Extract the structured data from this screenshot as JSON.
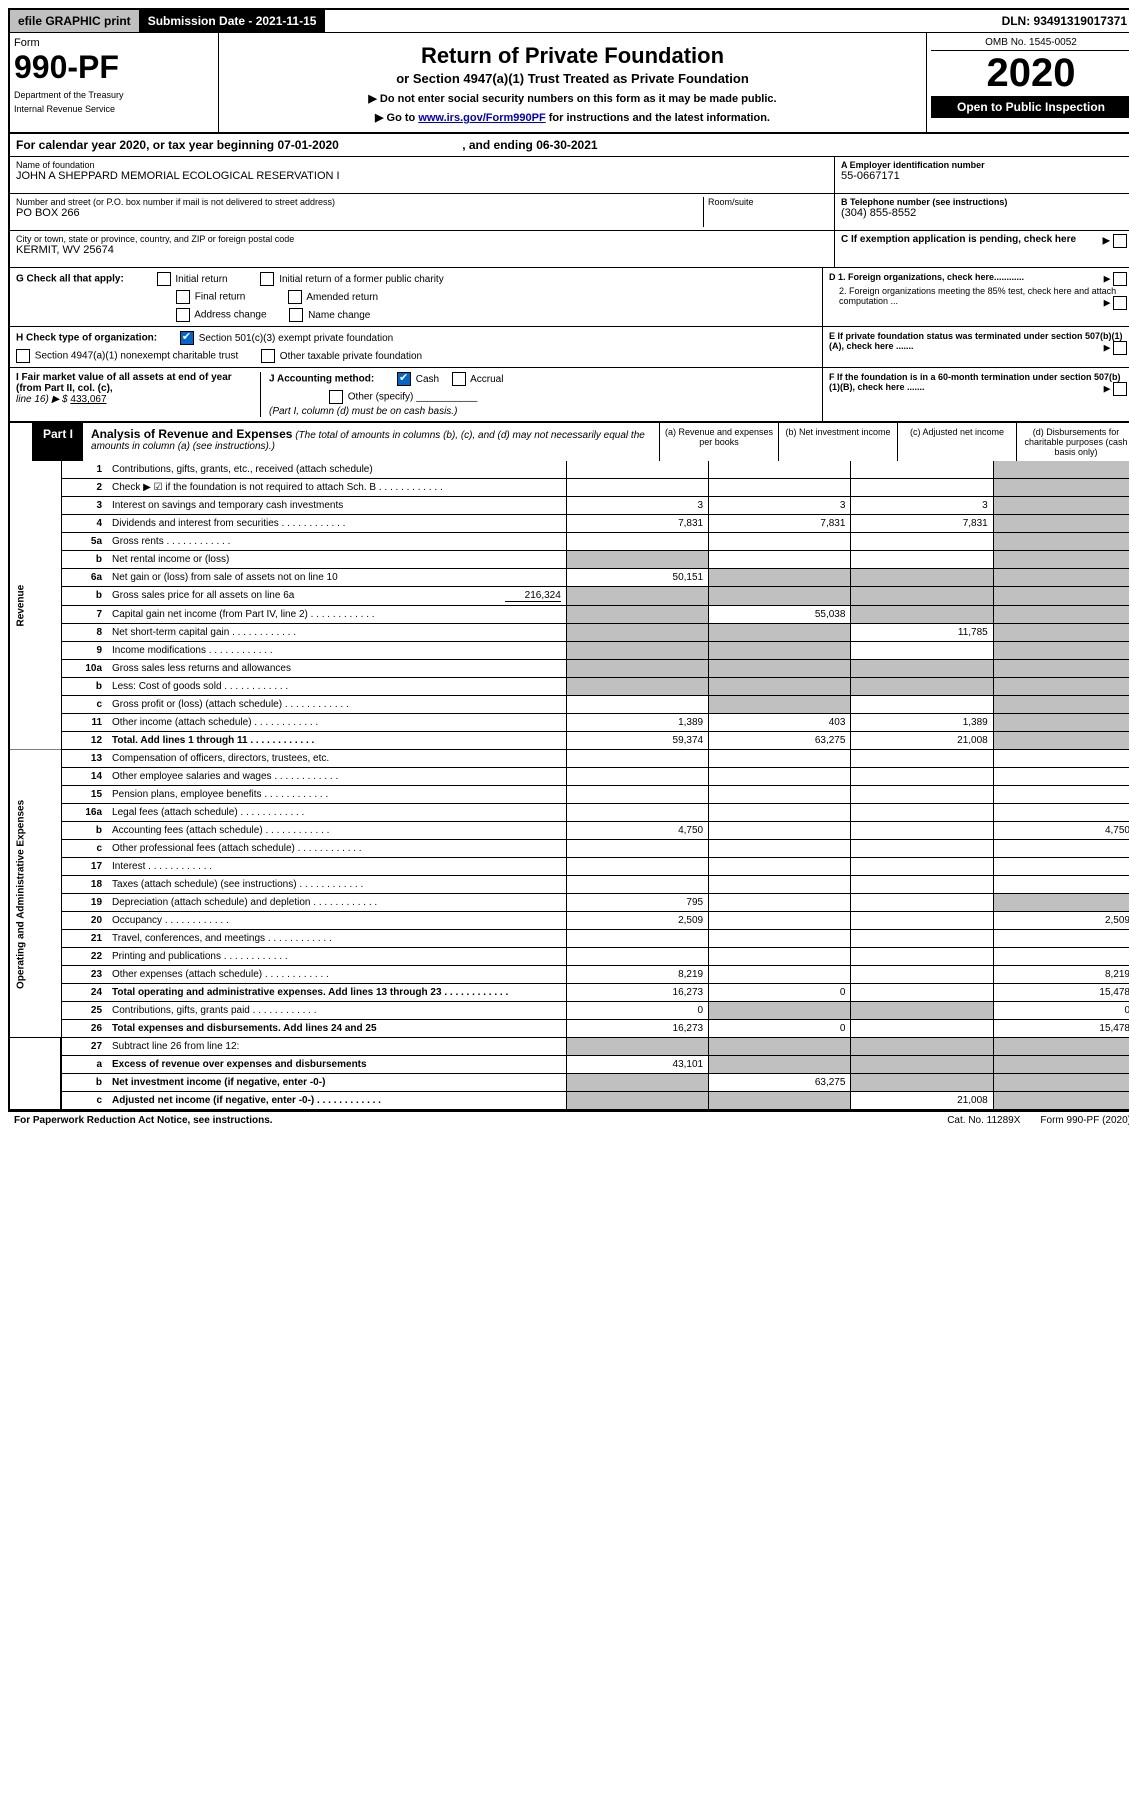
{
  "top_bar": {
    "efile": "efile GRAPHIC print",
    "submission": "Submission Date - 2021-11-15",
    "dln": "DLN: 93491319017371"
  },
  "header": {
    "form": "Form",
    "number": "990-PF",
    "dept": "Department of the Treasury",
    "irs": "Internal Revenue Service",
    "title": "Return of Private Foundation",
    "subtitle": "or Section 4947(a)(1) Trust Treated as Private Foundation",
    "note1": "▶ Do not enter social security numbers on this form as it may be made public.",
    "note2_pre": "▶ Go to ",
    "note2_link": "www.irs.gov/Form990PF",
    "note2_post": " for instructions and the latest information.",
    "omb": "OMB No. 1545-0052",
    "year": "2020",
    "open": "Open to Public Inspection"
  },
  "cal_year": {
    "pre": "For calendar year 2020, or tax year beginning ",
    "begin": "07-01-2020",
    "mid": " , and ending ",
    "end": "06-30-2021"
  },
  "info": {
    "name_label": "Name of foundation",
    "name": "JOHN A SHEPPARD MEMORIAL ECOLOGICAL RESERVATION I",
    "addr_label": "Number and street (or P.O. box number if mail is not delivered to street address)",
    "addr": "PO BOX 266",
    "room_label": "Room/suite",
    "city_label": "City or town, state or province, country, and ZIP or foreign postal code",
    "city": "KERMIT, WV  25674",
    "a_label": "A Employer identification number",
    "a_value": "55-0667171",
    "b_label": "B Telephone number (see instructions)",
    "b_value": "(304) 855-8552",
    "c_label": "C If exemption application is pending, check here"
  },
  "g": {
    "label": "G Check all that apply:",
    "initial": "Initial return",
    "initial_former": "Initial return of a former public charity",
    "final": "Final return",
    "amended": "Amended return",
    "addr_change": "Address change",
    "name_change": "Name change"
  },
  "h": {
    "label": "H Check type of organization:",
    "501c3": "Section 501(c)(3) exempt private foundation",
    "4947": "Section 4947(a)(1) nonexempt charitable trust",
    "other": "Other taxable private foundation"
  },
  "d": {
    "d1": "D 1. Foreign organizations, check here............",
    "d2": "2. Foreign organizations meeting the 85% test, check here and attach computation ..."
  },
  "e": "E  If private foundation status was terminated under section 507(b)(1)(A), check here .......",
  "i": {
    "label": "I Fair market value of all assets at end of year (from Part II, col. (c),",
    "line": "line 16) ▶ $",
    "value": "433,067"
  },
  "j": {
    "label": "J Accounting method:",
    "cash": "Cash",
    "accrual": "Accrual",
    "other": "Other (specify)",
    "note": "(Part I, column (d) must be on cash basis.)"
  },
  "f": "F  If the foundation is in a 60-month termination under section 507(b)(1)(B), check here .......",
  "part1": {
    "label": "Part I",
    "title": "Analysis of Revenue and Expenses",
    "note": " (The total of amounts in columns (b), (c), and (d) may not necessarily equal the amounts in column (a) (see instructions).)",
    "col_a": "(a)   Revenue and expenses per books",
    "col_b": "(b)   Net investment income",
    "col_c": "(c)   Adjusted net income",
    "col_d": "(d)   Disbursements for charitable purposes (cash basis only)"
  },
  "sections": {
    "revenue": "Revenue",
    "opex": "Operating and Administrative Expenses"
  },
  "rows": [
    {
      "n": "1",
      "desc": "Contributions, gifts, grants, etc., received (attach schedule)",
      "a": "",
      "b": "",
      "c": "",
      "d": "",
      "sec": "rev",
      "grey_b": false
    },
    {
      "n": "2",
      "desc": "Check ▶ ☑ if the foundation is not required to attach Sch. B",
      "a": "",
      "b": "",
      "c": "",
      "d": "",
      "sec": "rev",
      "dots": true
    },
    {
      "n": "3",
      "desc": "Interest on savings and temporary cash investments",
      "a": "3",
      "b": "3",
      "c": "3",
      "d": "",
      "sec": "rev"
    },
    {
      "n": "4",
      "desc": "Dividends and interest from securities",
      "a": "7,831",
      "b": "7,831",
      "c": "7,831",
      "d": "",
      "sec": "rev",
      "dots": true
    },
    {
      "n": "5a",
      "desc": "Gross rents",
      "a": "",
      "b": "",
      "c": "",
      "d": "",
      "sec": "rev",
      "dots": true
    },
    {
      "n": "b",
      "desc": "Net rental income or (loss)",
      "a": "",
      "b": "",
      "c": "",
      "d": "",
      "sec": "rev",
      "grey_a": true
    },
    {
      "n": "6a",
      "desc": "Net gain or (loss) from sale of assets not on line 10",
      "a": "50,151",
      "b": "",
      "c": "",
      "d": "",
      "sec": "rev",
      "grey_b": true,
      "grey_c": true
    },
    {
      "n": "b",
      "desc": "Gross sales price for all assets on line 6a",
      "inline": "216,324",
      "a": "",
      "b": "",
      "c": "",
      "d": "",
      "sec": "rev",
      "grey_a": true,
      "grey_b": true,
      "grey_c": true
    },
    {
      "n": "7",
      "desc": "Capital gain net income (from Part IV, line 2)",
      "a": "",
      "b": "55,038",
      "c": "",
      "d": "",
      "sec": "rev",
      "grey_a": true,
      "grey_c": true,
      "dots": true
    },
    {
      "n": "8",
      "desc": "Net short-term capital gain",
      "a": "",
      "b": "",
      "c": "11,785",
      "d": "",
      "sec": "rev",
      "grey_a": true,
      "grey_b": true,
      "dots": true
    },
    {
      "n": "9",
      "desc": "Income modifications",
      "a": "",
      "b": "",
      "c": "",
      "d": "",
      "sec": "rev",
      "grey_a": true,
      "grey_b": true,
      "dots": true
    },
    {
      "n": "10a",
      "desc": "Gross sales less returns and allowances",
      "a": "",
      "b": "",
      "c": "",
      "d": "",
      "sec": "rev",
      "grey_a": true,
      "grey_b": true,
      "grey_c": true
    },
    {
      "n": "b",
      "desc": "Less: Cost of goods sold",
      "a": "",
      "b": "",
      "c": "",
      "d": "",
      "sec": "rev",
      "grey_a": true,
      "grey_b": true,
      "grey_c": true,
      "dots": true
    },
    {
      "n": "c",
      "desc": "Gross profit or (loss) (attach schedule)",
      "a": "",
      "b": "",
      "c": "",
      "d": "",
      "sec": "rev",
      "grey_b": true,
      "dots": true
    },
    {
      "n": "11",
      "desc": "Other income (attach schedule)",
      "a": "1,389",
      "b": "403",
      "c": "1,389",
      "d": "",
      "sec": "rev",
      "dots": true
    },
    {
      "n": "12",
      "desc": "Total. Add lines 1 through 11",
      "a": "59,374",
      "b": "63,275",
      "c": "21,008",
      "d": "",
      "sec": "rev",
      "bold": true,
      "dots": true
    },
    {
      "n": "13",
      "desc": "Compensation of officers, directors, trustees, etc.",
      "a": "",
      "b": "",
      "c": "",
      "d": "",
      "sec": "op"
    },
    {
      "n": "14",
      "desc": "Other employee salaries and wages",
      "a": "",
      "b": "",
      "c": "",
      "d": "",
      "sec": "op",
      "dots": true
    },
    {
      "n": "15",
      "desc": "Pension plans, employee benefits",
      "a": "",
      "b": "",
      "c": "",
      "d": "",
      "sec": "op",
      "dots": true
    },
    {
      "n": "16a",
      "desc": "Legal fees (attach schedule)",
      "a": "",
      "b": "",
      "c": "",
      "d": "",
      "sec": "op",
      "dots": true
    },
    {
      "n": "b",
      "desc": "Accounting fees (attach schedule)",
      "a": "4,750",
      "b": "",
      "c": "",
      "d": "4,750",
      "sec": "op",
      "dots": true
    },
    {
      "n": "c",
      "desc": "Other professional fees (attach schedule)",
      "a": "",
      "b": "",
      "c": "",
      "d": "",
      "sec": "op",
      "dots": true
    },
    {
      "n": "17",
      "desc": "Interest",
      "a": "",
      "b": "",
      "c": "",
      "d": "",
      "sec": "op",
      "dots": true
    },
    {
      "n": "18",
      "desc": "Taxes (attach schedule) (see instructions)",
      "a": "",
      "b": "",
      "c": "",
      "d": "",
      "sec": "op",
      "dots": true
    },
    {
      "n": "19",
      "desc": "Depreciation (attach schedule) and depletion",
      "a": "795",
      "b": "",
      "c": "",
      "d": "",
      "sec": "op",
      "grey_d": true,
      "dots": true
    },
    {
      "n": "20",
      "desc": "Occupancy",
      "a": "2,509",
      "b": "",
      "c": "",
      "d": "2,509",
      "sec": "op",
      "dots": true
    },
    {
      "n": "21",
      "desc": "Travel, conferences, and meetings",
      "a": "",
      "b": "",
      "c": "",
      "d": "",
      "sec": "op",
      "dots": true
    },
    {
      "n": "22",
      "desc": "Printing and publications",
      "a": "",
      "b": "",
      "c": "",
      "d": "",
      "sec": "op",
      "dots": true
    },
    {
      "n": "23",
      "desc": "Other expenses (attach schedule)",
      "a": "8,219",
      "b": "",
      "c": "",
      "d": "8,219",
      "sec": "op",
      "dots": true
    },
    {
      "n": "24",
      "desc": "Total operating and administrative expenses. Add lines 13 through 23",
      "a": "16,273",
      "b": "0",
      "c": "",
      "d": "15,478",
      "sec": "op",
      "bold": true,
      "dots": true
    },
    {
      "n": "25",
      "desc": "Contributions, gifts, grants paid",
      "a": "0",
      "b": "",
      "c": "",
      "d": "0",
      "sec": "op",
      "grey_b": true,
      "grey_c": true,
      "dots": true
    },
    {
      "n": "26",
      "desc": "Total expenses and disbursements. Add lines 24 and 25",
      "a": "16,273",
      "b": "0",
      "c": "",
      "d": "15,478",
      "sec": "op",
      "bold": true
    },
    {
      "n": "27",
      "desc": "Subtract line 26 from line 12:",
      "a": "",
      "b": "",
      "c": "",
      "d": "",
      "sec": "bot",
      "grey_a": true,
      "grey_b": true,
      "grey_c": true,
      "grey_d": true
    },
    {
      "n": "a",
      "desc": "Excess of revenue over expenses and disbursements",
      "a": "43,101",
      "b": "",
      "c": "",
      "d": "",
      "sec": "bot",
      "bold": true,
      "grey_b": true,
      "grey_c": true,
      "grey_d": true
    },
    {
      "n": "b",
      "desc": "Net investment income (if negative, enter -0-)",
      "a": "",
      "b": "63,275",
      "c": "",
      "d": "",
      "sec": "bot",
      "bold": true,
      "grey_a": true,
      "grey_c": true,
      "grey_d": true
    },
    {
      "n": "c",
      "desc": "Adjusted net income (if negative, enter -0-)",
      "a": "",
      "b": "",
      "c": "21,008",
      "d": "",
      "sec": "bot",
      "bold": true,
      "grey_a": true,
      "grey_b": true,
      "grey_d": true,
      "dots": true
    }
  ],
  "footer": {
    "left": "For Paperwork Reduction Act Notice, see instructions.",
    "mid": "Cat. No. 11289X",
    "right": "Form 990-PF (2020)"
  },
  "colors": {
    "grey": "#c0c0c0",
    "link": "#0000cc",
    "check": "#0066cc"
  }
}
